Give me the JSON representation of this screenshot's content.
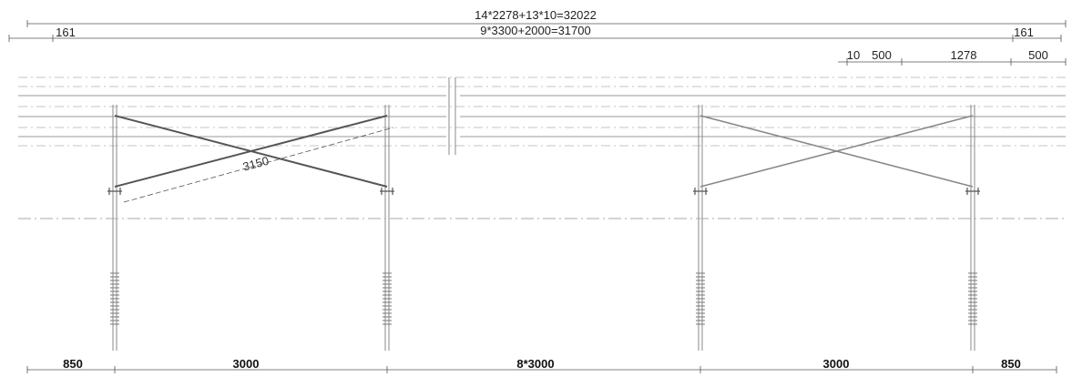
{
  "drawing": {
    "top_dimensions": {
      "total_modules": "14*2278+13*10=32022",
      "total_span": "9*3300+2000=31700",
      "overhang_left": "161",
      "overhang_right": "161",
      "gap": "10",
      "clamp_offset": "500",
      "module_width": "1278",
      "clamp_offset_end": "500"
    },
    "diagonal_brace_length": "3150",
    "bottom_dimensions": {
      "edge_left": "850",
      "bay_left": "3000",
      "middle_bays": "8*3000",
      "bay_right": "3000",
      "edge_right": "850"
    }
  }
}
